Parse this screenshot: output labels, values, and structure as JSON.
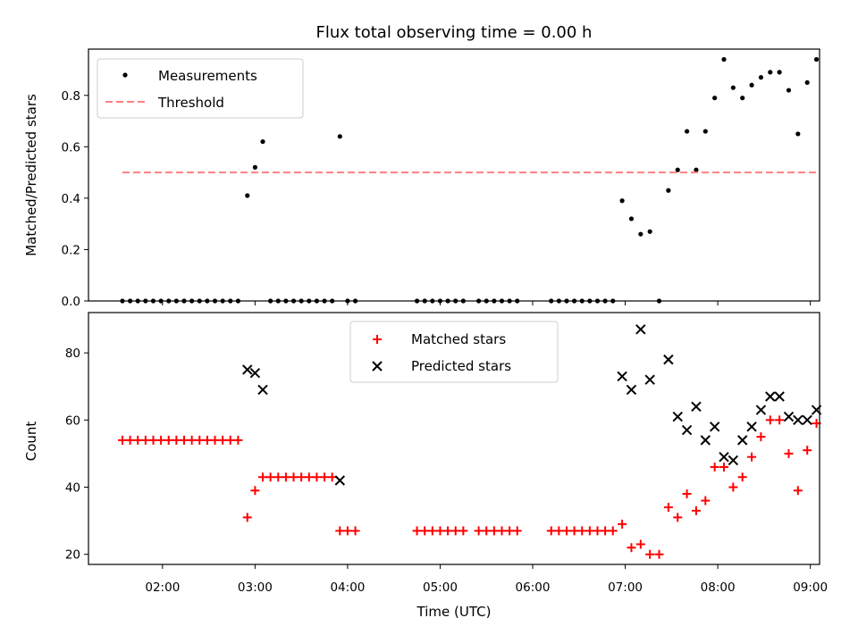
{
  "chart_data": [
    {
      "type": "scatter",
      "title": "Flux total observing time = 0.00 h",
      "xlabel": "",
      "ylabel": "Matched/Predicted stars",
      "ylim": [
        0,
        0.98
      ],
      "yticks": [
        0.0,
        0.2,
        0.4,
        0.6,
        0.8
      ],
      "ytick_labels": [
        "0.0",
        "0.2",
        "0.4",
        "0.6",
        "0.8"
      ],
      "xlim_hours": [
        1.2,
        9.1
      ],
      "legend_position": "top-left",
      "series": [
        {
          "name": "Measurements",
          "marker": "dot",
          "color": "#000000",
          "points": [
            [
              "01:34",
              0
            ],
            [
              "01:39",
              0
            ],
            [
              "01:44",
              0
            ],
            [
              "01:49",
              0
            ],
            [
              "01:54",
              0
            ],
            [
              "01:59",
              0
            ],
            [
              "02:04",
              0
            ],
            [
              "02:09",
              0
            ],
            [
              "02:14",
              0
            ],
            [
              "02:19",
              0
            ],
            [
              "02:24",
              0
            ],
            [
              "02:29",
              0
            ],
            [
              "02:34",
              0
            ],
            [
              "02:39",
              0
            ],
            [
              "02:44",
              0
            ],
            [
              "02:49",
              0
            ],
            [
              "02:55",
              0.41
            ],
            [
              "03:00",
              0.52
            ],
            [
              "03:05",
              0.62
            ],
            [
              "03:10",
              0
            ],
            [
              "03:15",
              0
            ],
            [
              "03:20",
              0
            ],
            [
              "03:25",
              0
            ],
            [
              "03:30",
              0
            ],
            [
              "03:35",
              0
            ],
            [
              "03:40",
              0
            ],
            [
              "03:45",
              0
            ],
            [
              "03:50",
              0
            ],
            [
              "03:55",
              0.64
            ],
            [
              "04:00",
              0
            ],
            [
              "04:05",
              0
            ],
            [
              "04:45",
              0
            ],
            [
              "04:50",
              0
            ],
            [
              "04:55",
              0
            ],
            [
              "05:00",
              0
            ],
            [
              "05:05",
              0
            ],
            [
              "05:10",
              0
            ],
            [
              "05:15",
              0
            ],
            [
              "05:25",
              0
            ],
            [
              "05:30",
              0
            ],
            [
              "05:35",
              0
            ],
            [
              "05:40",
              0
            ],
            [
              "05:45",
              0
            ],
            [
              "05:50",
              0
            ],
            [
              "06:12",
              0
            ],
            [
              "06:17",
              0
            ],
            [
              "06:22",
              0
            ],
            [
              "06:27",
              0
            ],
            [
              "06:32",
              0
            ],
            [
              "06:37",
              0
            ],
            [
              "06:42",
              0
            ],
            [
              "06:47",
              0
            ],
            [
              "06:52",
              0
            ],
            [
              "06:58",
              0.39
            ],
            [
              "07:04",
              0.32
            ],
            [
              "07:10",
              0.26
            ],
            [
              "07:16",
              0.27
            ],
            [
              "07:22",
              0
            ],
            [
              "07:28",
              0.43
            ],
            [
              "07:34",
              0.51
            ],
            [
              "07:40",
              0.66
            ],
            [
              "07:46",
              0.51
            ],
            [
              "07:52",
              0.66
            ],
            [
              "07:58",
              0.79
            ],
            [
              "08:04",
              0.94
            ],
            [
              "08:10",
              0.83
            ],
            [
              "08:16",
              0.79
            ],
            [
              "08:22",
              0.84
            ],
            [
              "08:28",
              0.87
            ],
            [
              "08:34",
              0.89
            ],
            [
              "08:40",
              0.89
            ],
            [
              "08:46",
              0.82
            ],
            [
              "08:52",
              0.65
            ],
            [
              "08:58",
              0.85
            ],
            [
              "09:04",
              0.94
            ]
          ]
        },
        {
          "name": "Threshold",
          "marker": "dashed-line",
          "color": "#ff7f7f",
          "x_start": "01:34",
          "x_end": "09:04",
          "y": 0.5
        }
      ]
    },
    {
      "type": "scatter",
      "title": "",
      "xlabel": "Time (UTC)",
      "ylabel": "Count",
      "ylim": [
        17,
        92
      ],
      "yticks": [
        20,
        40,
        60,
        80
      ],
      "ytick_labels": [
        "20",
        "40",
        "60",
        "80"
      ],
      "xlim_hours": [
        1.2,
        9.1
      ],
      "xticks": [
        "02:00",
        "03:00",
        "04:00",
        "05:00",
        "06:00",
        "07:00",
        "08:00",
        "09:00"
      ],
      "legend_position": "top-center",
      "series": [
        {
          "name": "Matched stars",
          "marker": "plus",
          "color": "#ff0000",
          "points": [
            [
              "01:34",
              54
            ],
            [
              "01:39",
              54
            ],
            [
              "01:44",
              54
            ],
            [
              "01:49",
              54
            ],
            [
              "01:54",
              54
            ],
            [
              "01:59",
              54
            ],
            [
              "02:04",
              54
            ],
            [
              "02:09",
              54
            ],
            [
              "02:14",
              54
            ],
            [
              "02:19",
              54
            ],
            [
              "02:24",
              54
            ],
            [
              "02:29",
              54
            ],
            [
              "02:34",
              54
            ],
            [
              "02:39",
              54
            ],
            [
              "02:44",
              54
            ],
            [
              "02:49",
              54
            ],
            [
              "02:55",
              31
            ],
            [
              "03:00",
              39
            ],
            [
              "03:05",
              43
            ],
            [
              "03:10",
              43
            ],
            [
              "03:15",
              43
            ],
            [
              "03:20",
              43
            ],
            [
              "03:25",
              43
            ],
            [
              "03:30",
              43
            ],
            [
              "03:35",
              43
            ],
            [
              "03:40",
              43
            ],
            [
              "03:45",
              43
            ],
            [
              "03:50",
              43
            ],
            [
              "03:55",
              27
            ],
            [
              "04:00",
              27
            ],
            [
              "04:05",
              27
            ],
            [
              "04:45",
              27
            ],
            [
              "04:50",
              27
            ],
            [
              "04:55",
              27
            ],
            [
              "05:00",
              27
            ],
            [
              "05:05",
              27
            ],
            [
              "05:10",
              27
            ],
            [
              "05:15",
              27
            ],
            [
              "05:25",
              27
            ],
            [
              "05:30",
              27
            ],
            [
              "05:35",
              27
            ],
            [
              "05:40",
              27
            ],
            [
              "05:45",
              27
            ],
            [
              "05:50",
              27
            ],
            [
              "06:12",
              27
            ],
            [
              "06:17",
              27
            ],
            [
              "06:22",
              27
            ],
            [
              "06:27",
              27
            ],
            [
              "06:32",
              27
            ],
            [
              "06:37",
              27
            ],
            [
              "06:42",
              27
            ],
            [
              "06:47",
              27
            ],
            [
              "06:52",
              27
            ],
            [
              "06:58",
              29
            ],
            [
              "07:04",
              22
            ],
            [
              "07:10",
              23
            ],
            [
              "07:16",
              20
            ],
            [
              "07:22",
              20
            ],
            [
              "07:28",
              34
            ],
            [
              "07:34",
              31
            ],
            [
              "07:40",
              38
            ],
            [
              "07:46",
              33
            ],
            [
              "07:52",
              36
            ],
            [
              "07:58",
              46
            ],
            [
              "08:04",
              46
            ],
            [
              "08:10",
              40
            ],
            [
              "08:16",
              43
            ],
            [
              "08:22",
              49
            ],
            [
              "08:28",
              55
            ],
            [
              "08:34",
              60
            ],
            [
              "08:40",
              60
            ],
            [
              "08:46",
              50
            ],
            [
              "08:52",
              39
            ],
            [
              "08:58",
              51
            ],
            [
              "09:04",
              59
            ]
          ]
        },
        {
          "name": "Predicted stars",
          "marker": "x",
          "color": "#000000",
          "points": [
            [
              "02:55",
              75
            ],
            [
              "03:00",
              74
            ],
            [
              "03:05",
              69
            ],
            [
              "03:55",
              42
            ],
            [
              "06:58",
              73
            ],
            [
              "07:04",
              69
            ],
            [
              "07:10",
              87
            ],
            [
              "07:16",
              72
            ],
            [
              "07:28",
              78
            ],
            [
              "07:34",
              61
            ],
            [
              "07:40",
              57
            ],
            [
              "07:46",
              64
            ],
            [
              "07:52",
              54
            ],
            [
              "07:58",
              58
            ],
            [
              "08:04",
              49
            ],
            [
              "08:10",
              48
            ],
            [
              "08:16",
              54
            ],
            [
              "08:22",
              58
            ],
            [
              "08:28",
              63
            ],
            [
              "08:34",
              67
            ],
            [
              "08:40",
              67
            ],
            [
              "08:46",
              61
            ],
            [
              "08:52",
              60
            ],
            [
              "08:58",
              60
            ],
            [
              "09:04",
              63
            ]
          ]
        }
      ]
    }
  ]
}
